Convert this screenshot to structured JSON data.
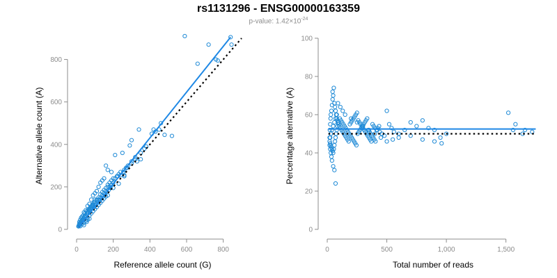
{
  "title": "rs1131296 - ENSG00000163359",
  "subtitle": {
    "prefix": "p-value: 1.42×10",
    "exponent": "-24"
  },
  "colors": {
    "points": "#1f8ad6",
    "fit": "#1e88e5",
    "reference": "#000000",
    "axis": "#8c8c8c"
  },
  "chart_data": [
    {
      "type": "scatter",
      "xlabel": "Reference allele count (G)",
      "ylabel": "Alternative allele count (A)",
      "xlim": [
        0,
        900
      ],
      "ylim": [
        0,
        900
      ],
      "xticks": [
        0,
        200,
        400,
        600,
        800
      ],
      "yticks": [
        0,
        200,
        400,
        600,
        800
      ],
      "xtick_labels": [
        "0",
        "200",
        "400",
        "600",
        "800"
      ],
      "ytick_labels": [
        "0",
        "200",
        "400",
        "600",
        "800"
      ],
      "fit_line": {
        "x": [
          10,
          840
        ],
        "y": [
          10,
          905
        ],
        "style": "solid"
      },
      "reference_line": {
        "x": [
          10,
          900
        ],
        "y": [
          10,
          900
        ],
        "style": "dotted"
      },
      "points": [
        [
          590,
          910
        ],
        [
          720,
          870
        ],
        [
          840,
          905
        ],
        [
          660,
          780
        ],
        [
          760,
          800
        ],
        [
          770,
          795
        ],
        [
          845,
          870
        ],
        [
          340,
          470
        ],
        [
          420,
          470
        ],
        [
          460,
          500
        ],
        [
          300,
          420
        ],
        [
          290,
          395
        ],
        [
          250,
          360
        ],
        [
          210,
          350
        ],
        [
          320,
          340
        ],
        [
          350,
          330
        ],
        [
          330,
          320
        ],
        [
          300,
          310
        ],
        [
          280,
          300
        ],
        [
          270,
          290
        ],
        [
          260,
          280
        ],
        [
          240,
          270
        ],
        [
          230,
          260
        ],
        [
          220,
          250
        ],
        [
          200,
          240
        ],
        [
          190,
          230
        ],
        [
          180,
          220
        ],
        [
          170,
          210
        ],
        [
          160,
          195
        ],
        [
          150,
          185
        ],
        [
          140,
          175
        ],
        [
          130,
          165
        ],
        [
          120,
          150
        ],
        [
          110,
          140
        ],
        [
          100,
          130
        ],
        [
          95,
          125
        ],
        [
          90,
          115
        ],
        [
          85,
          110
        ],
        [
          80,
          100
        ],
        [
          75,
          95
        ],
        [
          70,
          90
        ],
        [
          65,
          82
        ],
        [
          60,
          76
        ],
        [
          55,
          70
        ],
        [
          50,
          64
        ],
        [
          45,
          58
        ],
        [
          40,
          52
        ],
        [
          35,
          46
        ],
        [
          30,
          40
        ],
        [
          28,
          35
        ],
        [
          25,
          30
        ],
        [
          22,
          27
        ],
        [
          20,
          24
        ],
        [
          18,
          22
        ],
        [
          15,
          19
        ],
        [
          12,
          16
        ],
        [
          10,
          14
        ],
        [
          14,
          24
        ],
        [
          18,
          30
        ],
        [
          24,
          36
        ],
        [
          30,
          44
        ],
        [
          36,
          50
        ],
        [
          42,
          58
        ],
        [
          48,
          66
        ],
        [
          55,
          76
        ],
        [
          62,
          84
        ],
        [
          68,
          92
        ],
        [
          75,
          100
        ],
        [
          82,
          108
        ],
        [
          90,
          120
        ],
        [
          100,
          140
        ],
        [
          110,
          135
        ],
        [
          120,
          140
        ],
        [
          130,
          150
        ],
        [
          140,
          160
        ],
        [
          150,
          170
        ],
        [
          160,
          180
        ],
        [
          170,
          200
        ],
        [
          180,
          200
        ],
        [
          190,
          210
        ],
        [
          200,
          220
        ],
        [
          210,
          240
        ],
        [
          225,
          250
        ],
        [
          240,
          255
        ],
        [
          255,
          270
        ],
        [
          260,
          255
        ],
        [
          275,
          290
        ],
        [
          300,
          320
        ],
        [
          320,
          330
        ],
        [
          350,
          360
        ],
        [
          370,
          380
        ],
        [
          380,
          390
        ],
        [
          410,
          450
        ],
        [
          430,
          460
        ],
        [
          450,
          470
        ],
        [
          480,
          445
        ],
        [
          520,
          440
        ],
        [
          160,
          300
        ],
        [
          170,
          280
        ],
        [
          190,
          270
        ],
        [
          150,
          240
        ],
        [
          140,
          230
        ],
        [
          130,
          220
        ],
        [
          120,
          200
        ],
        [
          110,
          180
        ],
        [
          100,
          170
        ],
        [
          90,
          160
        ],
        [
          80,
          140
        ],
        [
          70,
          120
        ],
        [
          60,
          110
        ],
        [
          50,
          90
        ],
        [
          40,
          80
        ],
        [
          30,
          60
        ],
        [
          20,
          45
        ],
        [
          15,
          35
        ],
        [
          25,
          55
        ],
        [
          35,
          65
        ],
        [
          45,
          75
        ],
        [
          55,
          85
        ],
        [
          65,
          95
        ],
        [
          75,
          105
        ],
        [
          85,
          115
        ],
        [
          95,
          105
        ],
        [
          105,
          120
        ],
        [
          115,
          125
        ],
        [
          125,
          135
        ],
        [
          135,
          145
        ],
        [
          145,
          155
        ],
        [
          155,
          165
        ],
        [
          165,
          175
        ],
        [
          175,
          185
        ],
        [
          185,
          195
        ],
        [
          60,
          55
        ],
        [
          70,
          65
        ],
        [
          80,
          75
        ],
        [
          90,
          85
        ],
        [
          100,
          95
        ],
        [
          110,
          105
        ],
        [
          120,
          115
        ],
        [
          130,
          125
        ],
        [
          140,
          135
        ],
        [
          150,
          145
        ],
        [
          160,
          155
        ],
        [
          40,
          30
        ],
        [
          50,
          40
        ],
        [
          30,
          25
        ],
        [
          20,
          15
        ],
        [
          170,
          160
        ],
        [
          200,
          195
        ],
        [
          230,
          215
        ],
        [
          260,
          250
        ],
        [
          40,
          20
        ],
        [
          55,
          35
        ],
        [
          60,
          45
        ],
        [
          70,
          50
        ]
      ]
    },
    {
      "type": "scatter",
      "xlabel": "Total number of reads",
      "ylabel": "Percentage alternative (A)",
      "xlim": [
        0,
        1800
      ],
      "ylim": [
        0,
        100
      ],
      "xticks": [
        0,
        500,
        1000,
        1500
      ],
      "yticks": [
        0,
        20,
        40,
        60,
        80,
        100
      ],
      "xtick_labels": [
        "0",
        "500",
        "1,000",
        "1,500"
      ],
      "ytick_labels": [
        "0",
        "20",
        "40",
        "60",
        "80",
        "100"
      ],
      "fit_line": {
        "x": [
          10,
          1750
        ],
        "y": [
          52.5,
          52.5
        ],
        "style": "solid"
      },
      "reference_line": {
        "x": [
          10,
          1750
        ],
        "y": [
          50,
          50
        ],
        "style": "dotted"
      },
      "points": [
        [
          70,
          24
        ],
        [
          60,
          31
        ],
        [
          50,
          33
        ],
        [
          40,
          36
        ],
        [
          35,
          38
        ],
        [
          30,
          40
        ],
        [
          25,
          42
        ],
        [
          20,
          44
        ],
        [
          20,
          48
        ],
        [
          22,
          52
        ],
        [
          25,
          55
        ],
        [
          28,
          58
        ],
        [
          30,
          60
        ],
        [
          35,
          62
        ],
        [
          40,
          65
        ],
        [
          45,
          68
        ],
        [
          50,
          70
        ],
        [
          55,
          74
        ],
        [
          45,
          72
        ],
        [
          60,
          66
        ],
        [
          65,
          64
        ],
        [
          70,
          62
        ],
        [
          75,
          60
        ],
        [
          80,
          58
        ],
        [
          85,
          57
        ],
        [
          90,
          56
        ],
        [
          95,
          55
        ],
        [
          100,
          54
        ],
        [
          110,
          53
        ],
        [
          120,
          52
        ],
        [
          130,
          51
        ],
        [
          140,
          50
        ],
        [
          150,
          49
        ],
        [
          160,
          48
        ],
        [
          170,
          47
        ],
        [
          180,
          46
        ],
        [
          190,
          55
        ],
        [
          200,
          56
        ],
        [
          210,
          57
        ],
        [
          220,
          58
        ],
        [
          230,
          59
        ],
        [
          240,
          60
        ],
        [
          250,
          61
        ],
        [
          260,
          57
        ],
        [
          270,
          56
        ],
        [
          280,
          55
        ],
        [
          290,
          54
        ],
        [
          300,
          53
        ],
        [
          310,
          52
        ],
        [
          320,
          51
        ],
        [
          330,
          50
        ],
        [
          340,
          49
        ],
        [
          350,
          48
        ],
        [
          360,
          47
        ],
        [
          370,
          46
        ],
        [
          380,
          55
        ],
        [
          390,
          54
        ],
        [
          400,
          53
        ],
        [
          420,
          52
        ],
        [
          440,
          51
        ],
        [
          460,
          50
        ],
        [
          480,
          49
        ],
        [
          500,
          62
        ],
        [
          520,
          55
        ],
        [
          540,
          53
        ],
        [
          560,
          51
        ],
        [
          600,
          50
        ],
        [
          650,
          52
        ],
        [
          700,
          56
        ],
        [
          750,
          54
        ],
        [
          800,
          57
        ],
        [
          850,
          53
        ],
        [
          900,
          52
        ],
        [
          950,
          48
        ],
        [
          1000,
          50
        ],
        [
          1520,
          61
        ],
        [
          1560,
          52
        ],
        [
          1580,
          55
        ],
        [
          1660,
          52
        ],
        [
          1640,
          50
        ],
        [
          1720,
          51
        ],
        [
          800,
          47
        ],
        [
          900,
          46
        ],
        [
          960,
          45
        ],
        [
          700,
          49
        ],
        [
          600,
          48
        ],
        [
          550,
          47
        ],
        [
          500,
          46
        ],
        [
          450,
          48
        ],
        [
          400,
          50
        ],
        [
          350,
          52
        ],
        [
          300,
          54
        ],
        [
          250,
          56
        ],
        [
          200,
          58
        ],
        [
          150,
          60
        ],
        [
          130,
          62
        ],
        [
          110,
          64
        ],
        [
          90,
          66
        ],
        [
          80,
          60
        ],
        [
          70,
          58
        ],
        [
          60,
          56
        ],
        [
          50,
          54
        ],
        [
          40,
          52
        ],
        [
          30,
          50
        ],
        [
          25,
          48
        ],
        [
          20,
          46
        ],
        [
          25,
          45
        ],
        [
          30,
          44
        ],
        [
          35,
          43
        ],
        [
          40,
          42
        ],
        [
          45,
          41
        ],
        [
          50,
          40
        ],
        [
          55,
          42
        ],
        [
          60,
          44
        ],
        [
          65,
          46
        ],
        [
          70,
          48
        ],
        [
          75,
          50
        ],
        [
          80,
          52
        ],
        [
          85,
          54
        ],
        [
          95,
          56
        ],
        [
          105,
          58
        ],
        [
          115,
          57
        ],
        [
          125,
          56
        ],
        [
          135,
          55
        ],
        [
          145,
          54
        ],
        [
          155,
          53
        ],
        [
          165,
          52
        ],
        [
          175,
          51
        ],
        [
          185,
          50
        ],
        [
          195,
          49
        ],
        [
          205,
          48
        ],
        [
          215,
          47
        ],
        [
          225,
          46
        ],
        [
          235,
          45
        ],
        [
          245,
          44
        ],
        [
          255,
          50
        ],
        [
          265,
          51
        ],
        [
          275,
          52
        ],
        [
          285,
          53
        ],
        [
          295,
          54
        ],
        [
          305,
          55
        ],
        [
          315,
          56
        ],
        [
          325,
          57
        ],
        [
          335,
          58
        ],
        [
          345,
          52
        ],
        [
          355,
          51
        ],
        [
          365,
          50
        ],
        [
          375,
          49
        ],
        [
          385,
          48
        ],
        [
          395,
          47
        ],
        [
          405,
          46
        ],
        [
          415,
          52
        ],
        [
          425,
          53
        ],
        [
          435,
          54
        ]
      ]
    }
  ]
}
